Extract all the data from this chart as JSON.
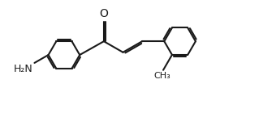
{
  "bg_color": "#ffffff",
  "line_color": "#1a1a1a",
  "lw": 1.5,
  "dbo": 0.02,
  "r": 0.195,
  "fs_label": 9,
  "fs_o": 10,
  "h2n": "H₂N",
  "o_sym": "O",
  "me": "CH₃",
  "xlim": [
    0.0,
    3.4
  ],
  "ylim": [
    0.0,
    1.4
  ]
}
